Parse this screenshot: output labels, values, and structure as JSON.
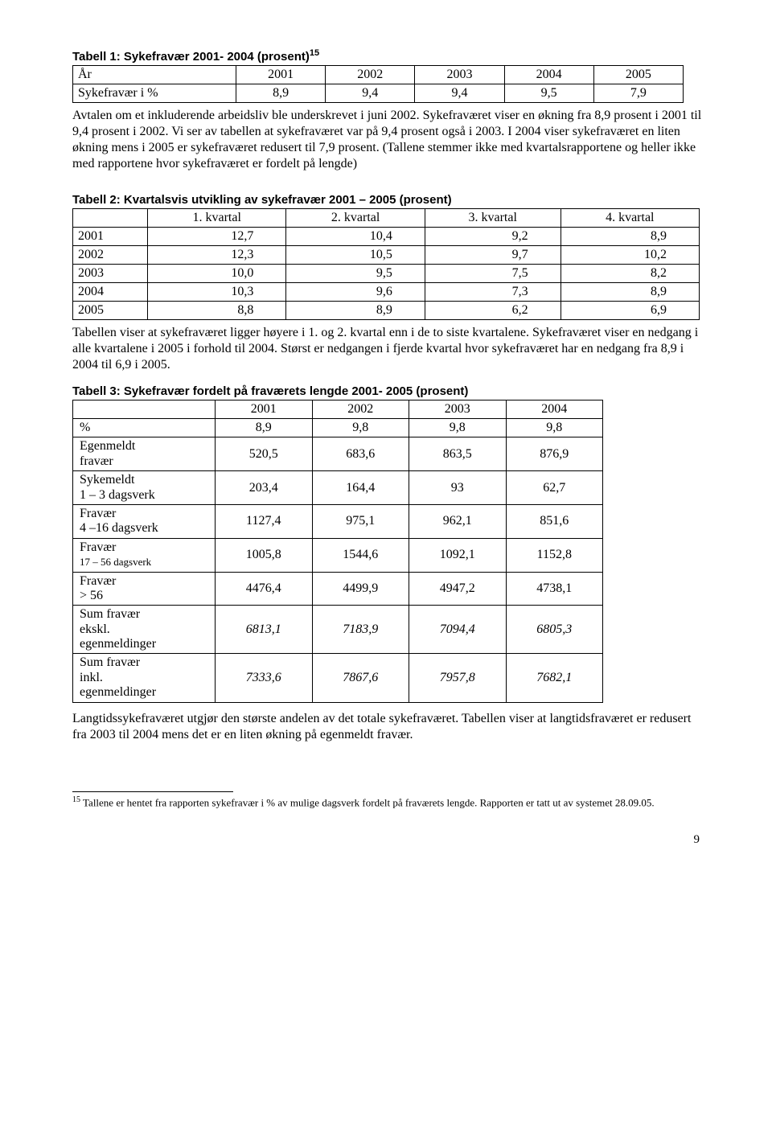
{
  "titles": {
    "t1": "Tabell 1: Sykefravær  2001- 2004 (prosent)",
    "t1_sup": "15",
    "t2": "Tabell 2:  Kvartalsvis utvikling av sykefravær 2001 – 2005 (prosent)",
    "t3": "Tabell 3: Sykefravær fordelt på fraværets lengde  2001- 2005 (prosent)"
  },
  "table1": {
    "headers": [
      "År",
      "2001",
      "2002",
      "2003",
      "2004",
      "2005"
    ],
    "row_label": "Sykefravær i %",
    "row_values": [
      "8,9",
      "9,4",
      "9,4",
      "9,5",
      "7,9"
    ]
  },
  "para1": "Avtalen om et inkluderende arbeidsliv ble underskrevet i juni 2002. Sykefraværet viser en økning fra 8,9 prosent i 2001 til 9,4 prosent i 2002. Vi ser av tabellen at sykefraværet var på 9,4 prosent også i 2003. I 2004 viser sykefraværet en liten økning mens i 2005 er sykefraværet redusert til 7,9 prosent. (Tallene stemmer ikke med kvartalsrapportene og heller ikke med rapportene hvor sykefraværet er fordelt på lengde)",
  "table2": {
    "headers": [
      "",
      "1. kvartal",
      "2. kvartal",
      "3. kvartal",
      "4. kvartal"
    ],
    "rows": [
      [
        "2001",
        "12,7",
        "10,4",
        "9,2",
        "8,9"
      ],
      [
        "2002",
        "12,3",
        "10,5",
        "9,7",
        "10,2"
      ],
      [
        "2003",
        "10,0",
        "9,5",
        "7,5",
        "8,2"
      ],
      [
        "2004",
        "10,3",
        "9,6",
        "7,3",
        "8,9"
      ],
      [
        "2005",
        "8,8",
        "8,9",
        "6,2",
        "6,9"
      ]
    ]
  },
  "para2": "Tabellen viser at sykefraværet ligger høyere i 1. og 2. kvartal enn i de to siste kvartalene. Sykefraværet viser en nedgang i alle kvartalene i 2005 i forhold til 2004. Størst er nedgangen i fjerde kvartal hvor sykefraværet har en nedgang fra 8,9 i 2004 til 6,9 i 2005.",
  "table3": {
    "headers": [
      "",
      "2001",
      "2002",
      "2003",
      "2004"
    ],
    "rows": [
      {
        "label": " %",
        "vals": [
          "8,9",
          "9,8",
          "9,8",
          "9,8"
        ],
        "italic": false
      },
      {
        "label": "Egenmeldt\nfravær",
        "vals": [
          "520,5",
          "683,6",
          "863,5",
          "876,9"
        ],
        "italic": false
      },
      {
        "label": "Sykemeldt\n1 – 3 dagsverk",
        "vals": [
          "203,4",
          "164,4",
          "93",
          "62,7"
        ],
        "italic": false
      },
      {
        "label": "Fravær\n4 –16 dagsverk",
        "vals": [
          "1127,4",
          "975,1",
          "962,1",
          "851,6"
        ],
        "italic": false
      },
      {
        "label": "Fravær\n17 – 56 dagsverk",
        "vals": [
          "1005,8",
          "1544,6",
          "1092,1",
          "1152,8"
        ],
        "italic": false,
        "small2": true
      },
      {
        "label": "Fravær\n> 56",
        "vals": [
          "4476,4",
          "4499,9",
          "4947,2",
          "4738,1"
        ],
        "italic": false
      },
      {
        "label": "Sum fravær\nekskl.\negenmeldinger",
        "vals": [
          "6813,1",
          "7183,9",
          "7094,4",
          "6805,3"
        ],
        "italic": true
      },
      {
        "label": "Sum fravær\ninkl.\negenmeldinger",
        "vals": [
          "7333,6",
          "7867,6",
          "7957,8",
          "7682,1"
        ],
        "italic": true
      }
    ]
  },
  "para3": "Langtidssykefraværet utgjør den største andelen av det totale sykefraværet. Tabellen viser at langtidsfraværet er redusert fra 2003 til 2004 mens det er en liten økning på egenmeldt fravær.",
  "footnote": {
    "num": "15",
    "text": " Tallene er hentet fra rapporten sykefravær i % av mulige dagsverk fordelt på fraværets lengde. Rapporten er tatt ut av systemet 28.09.05."
  },
  "page_num": "9"
}
